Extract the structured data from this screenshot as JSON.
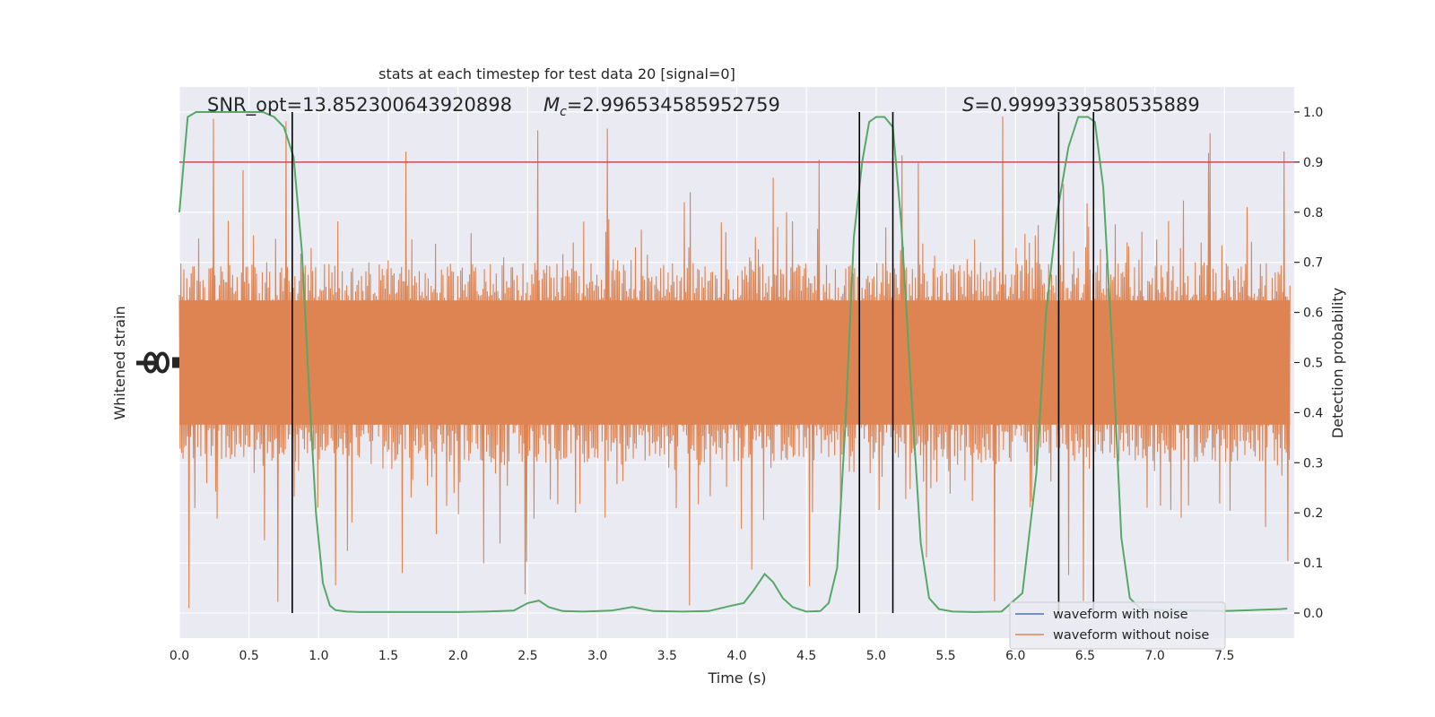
{
  "chart_data": {
    "type": "line",
    "title": "stats at each timestep for test data 20 [signal=0]",
    "xlabel": "Time (s)",
    "ylabel_left": "Whitened strain",
    "ylabel_right": "Detection probability",
    "xlim": [
      0.0,
      8.0
    ],
    "ylim_right": [
      -0.05,
      1.05
    ],
    "x_ticks": [
      "0.0",
      "0.5",
      "1.0",
      "1.5",
      "2.0",
      "2.5",
      "3.0",
      "3.5",
      "4.0",
      "4.5",
      "5.0",
      "5.5",
      "6.0",
      "6.5",
      "7.0",
      "7.5"
    ],
    "x_tick_values": [
      0,
      0.5,
      1,
      1.5,
      2,
      2.5,
      3,
      3.5,
      4,
      4.5,
      5,
      5.5,
      6,
      6.5,
      7,
      7.5
    ],
    "y_right_ticks": [
      "0.0",
      "0.1",
      "0.2",
      "0.3",
      "0.4",
      "0.5",
      "0.6",
      "0.7",
      "0.8",
      "0.9",
      "1.0"
    ],
    "y_right_tick_values": [
      0,
      0.1,
      0.2,
      0.3,
      0.4,
      0.5,
      0.6,
      0.7,
      0.8,
      0.9,
      1.0
    ],
    "grid": true,
    "background": "#eaeaf2",
    "annotations": {
      "snr": "SNR_opt=13.852300643920898",
      "mc_symbol": "M",
      "mc_sub": "c",
      "mc_value": "=2.996534585952759",
      "s_symbol": "S",
      "s_value": "=0.9999339580535889"
    },
    "legend": {
      "placement": "lower right",
      "entries": [
        {
          "label": "waveform with noise",
          "color": "#4c72b0"
        },
        {
          "label": "waveform without noise",
          "color": "#dd8452"
        }
      ]
    },
    "threshold": {
      "value": 0.9,
      "color": "#c44e52"
    },
    "vertical_lines": {
      "color": "#000000",
      "x": [
        0.81,
        4.88,
        5.12,
        6.31,
        6.56
      ]
    },
    "noise_series": {
      "name": "waveform without noise",
      "color": "#dd8452",
      "center": 0.5,
      "typical_half_range": 0.2,
      "max_half_range": 0.5
    },
    "series": [
      {
        "name": "detection probability",
        "color": "#55a868",
        "x": [
          0.0,
          0.06,
          0.12,
          0.2,
          0.3,
          0.4,
          0.5,
          0.6,
          0.68,
          0.75,
          0.82,
          0.88,
          0.93,
          0.98,
          1.03,
          1.08,
          1.12,
          1.2,
          1.3,
          1.5,
          1.7,
          2.0,
          2.2,
          2.4,
          2.5,
          2.58,
          2.65,
          2.75,
          2.9,
          3.1,
          3.25,
          3.4,
          3.6,
          3.8,
          3.95,
          4.05,
          4.12,
          4.2,
          4.26,
          4.33,
          4.4,
          4.5,
          4.6,
          4.66,
          4.72,
          4.78,
          4.84,
          4.9,
          4.95,
          5.0,
          5.06,
          5.12,
          5.18,
          5.25,
          5.32,
          5.38,
          5.45,
          5.55,
          5.7,
          5.9,
          6.05,
          6.15,
          6.22,
          6.3,
          6.38,
          6.45,
          6.52,
          6.57,
          6.63,
          6.7,
          6.76,
          6.82,
          6.9,
          7.1,
          7.3,
          7.5,
          7.6,
          7.7,
          7.8,
          7.9,
          7.95
        ],
        "values": [
          0.8,
          0.99,
          1.0,
          1.0,
          1.0,
          1.0,
          1.0,
          1.0,
          0.99,
          0.97,
          0.91,
          0.72,
          0.45,
          0.2,
          0.06,
          0.015,
          0.006,
          0.003,
          0.002,
          0.002,
          0.002,
          0.002,
          0.003,
          0.005,
          0.02,
          0.025,
          0.012,
          0.004,
          0.003,
          0.005,
          0.012,
          0.004,
          0.003,
          0.004,
          0.014,
          0.02,
          0.045,
          0.078,
          0.062,
          0.03,
          0.012,
          0.003,
          0.004,
          0.02,
          0.09,
          0.38,
          0.75,
          0.9,
          0.98,
          0.99,
          0.99,
          0.97,
          0.78,
          0.45,
          0.14,
          0.03,
          0.008,
          0.003,
          0.002,
          0.003,
          0.04,
          0.28,
          0.6,
          0.8,
          0.93,
          0.99,
          0.99,
          0.98,
          0.85,
          0.5,
          0.15,
          0.03,
          0.008,
          0.004,
          0.005,
          0.004,
          0.005,
          0.006,
          0.007,
          0.008,
          0.009
        ]
      }
    ]
  }
}
